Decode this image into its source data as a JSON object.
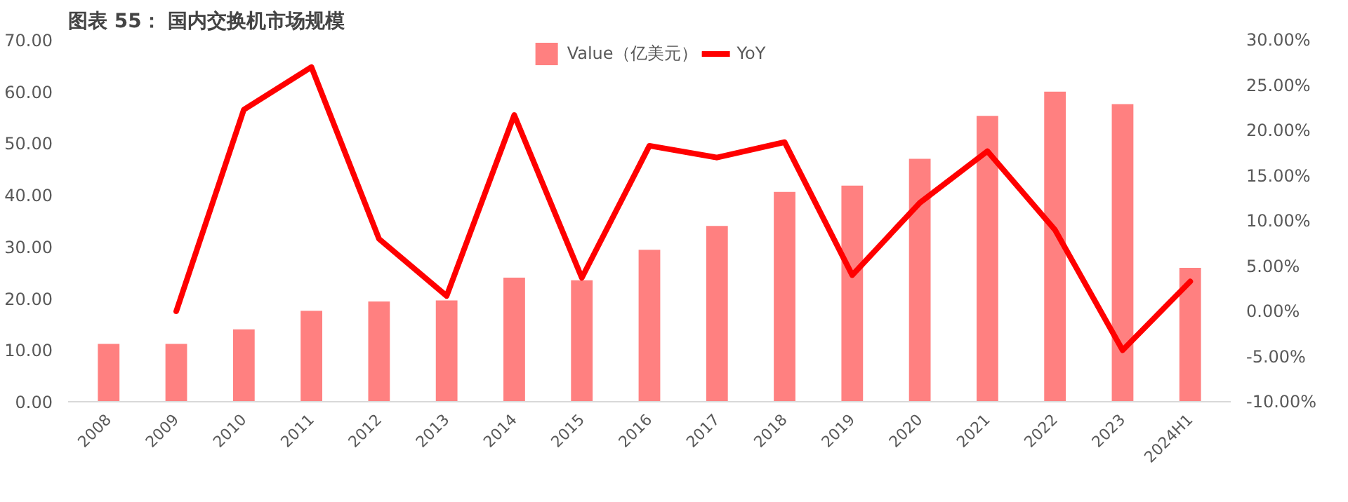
{
  "chart_data": {
    "type": "bar",
    "title": "图表 55： 国内交换机市场规模",
    "categories": [
      "2008",
      "2009",
      "2010",
      "2011",
      "2012",
      "2013",
      "2014",
      "2015",
      "2016",
      "2017",
      "2018",
      "2019",
      "2020",
      "2021",
      "2022",
      "2023",
      "2024H1"
    ],
    "series": [
      {
        "name": "Value（亿美元）",
        "color": "#ff8080",
        "values": [
          11.2,
          11.2,
          14,
          17.6,
          19.4,
          19.6,
          24,
          23.5,
          29.4,
          34,
          40.6,
          41.8,
          47,
          55.3,
          60,
          57.6,
          25.9
        ]
      },
      {
        "name": "YoY",
        "type": "line",
        "axis": "y2",
        "color": "#ff0000",
        "values": [
          null,
          0,
          22.3,
          27,
          8,
          1.7,
          21.7,
          3.7,
          18.3,
          17,
          18.7,
          4,
          12,
          17.7,
          9,
          -4.3,
          3.3
        ]
      }
    ],
    "ylim": [
      0,
      70
    ],
    "yticks": [
      {
        "value": 0,
        "label": "0.00"
      },
      {
        "value": 10,
        "label": "10.00"
      },
      {
        "value": 20,
        "label": "20.00"
      },
      {
        "value": 30,
        "label": "30.00"
      },
      {
        "value": 40,
        "label": "40.00"
      },
      {
        "value": 50,
        "label": "50.00"
      },
      {
        "value": 60,
        "label": "60.00"
      },
      {
        "value": 70,
        "label": "70.00"
      }
    ],
    "y2lim": [
      -10,
      30
    ],
    "y2ticks": [
      {
        "value": -10,
        "label": "-10.00%"
      },
      {
        "value": -5,
        "label": "-5.00%"
      },
      {
        "value": 0,
        "label": "0.00%"
      },
      {
        "value": 5,
        "label": "5.00%"
      },
      {
        "value": 10,
        "label": "10.00%"
      },
      {
        "value": 15,
        "label": "15.00%"
      },
      {
        "value": 20,
        "label": "20.00%"
      },
      {
        "value": 25,
        "label": "25.00%"
      },
      {
        "value": 30,
        "label": "30.00%"
      }
    ],
    "grid": false,
    "legend": "top",
    "line_style": "solid",
    "marker": "none"
  }
}
